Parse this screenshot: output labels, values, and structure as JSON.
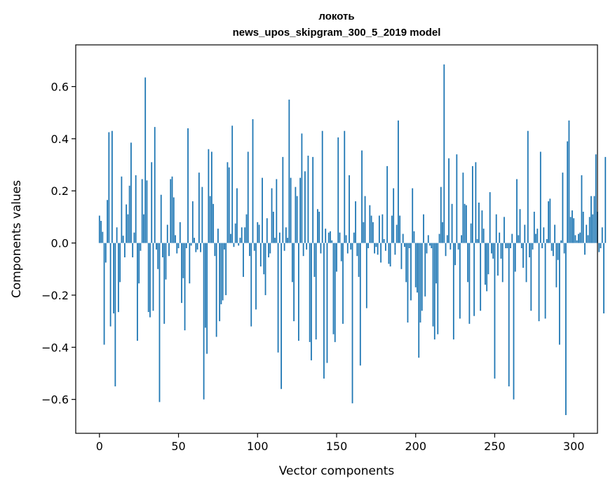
{
  "chart_data": {
    "type": "bar",
    "title": "локоть",
    "subtitle": "news_upos_skipgram_300_5_2019 model",
    "xlabel": "Vector components",
    "ylabel": "Components values",
    "xlim": [
      -15,
      315
    ],
    "ylim": [
      -0.73,
      0.76
    ],
    "xticks": [
      0,
      50,
      100,
      150,
      200,
      250,
      300
    ],
    "yticks": [
      -0.6,
      -0.4,
      -0.2,
      0.0,
      0.2,
      0.4,
      0.6
    ],
    "yticklabels": [
      "−0.6",
      "−0.4",
      "−0.2",
      "0.0",
      "0.2",
      "0.4",
      "0.6"
    ],
    "bar_color": "#1f77b4",
    "grid": false,
    "legend": "none",
    "values": [
      0.105,
      0.085,
      0.043,
      -0.39,
      -0.075,
      0.165,
      0.425,
      -0.32,
      0.43,
      -0.27,
      -0.55,
      0.06,
      -0.265,
      -0.15,
      0.255,
      0.028,
      -0.055,
      0.148,
      0.11,
      0.22,
      0.385,
      -0.055,
      0.04,
      0.26,
      -0.375,
      -0.155,
      -0.03,
      0.245,
      0.11,
      0.635,
      0.24,
      -0.265,
      -0.285,
      0.31,
      -0.26,
      0.445,
      -0.025,
      -0.1,
      -0.61,
      0.185,
      -0.055,
      -0.31,
      -0.14,
      0.07,
      -0.05,
      0.245,
      0.255,
      0.175,
      0.03,
      -0.04,
      -0.02,
      0.08,
      -0.23,
      -0.135,
      -0.335,
      -0.02,
      0.44,
      -0.155,
      -0.01,
      0.16,
      0.02,
      -0.035,
      -0.025,
      0.27,
      -0.035,
      0.215,
      -0.6,
      -0.325,
      -0.425,
      0.36,
      0.18,
      0.35,
      0.15,
      -0.05,
      -0.36,
      0.055,
      -0.3,
      -0.235,
      -0.22,
      -0.025,
      -0.2,
      0.31,
      0.29,
      0.035,
      0.45,
      -0.015,
      0.075,
      0.21,
      -0.01,
      0.02,
      0.06,
      -0.13,
      0.06,
      0.11,
      0.35,
      -0.05,
      -0.32,
      0.475,
      -0.03,
      -0.255,
      0.08,
      0.07,
      -0.09,
      0.25,
      -0.12,
      -0.2,
      0.095,
      -0.055,
      -0.04,
      0.21,
      0.12,
      0.02,
      0.245,
      -0.42,
      0.04,
      -0.56,
      0.33,
      -0.03,
      0.06,
      0.02,
      0.55,
      0.25,
      -0.15,
      -0.3,
      0.215,
      0.18,
      -0.375,
      0.25,
      0.42,
      -0.05,
      0.275,
      -0.025,
      0.335,
      -0.38,
      -0.45,
      0.33,
      -0.13,
      -0.37,
      0.13,
      0.12,
      -0.04,
      0.43,
      -0.52,
      0.055,
      -0.46,
      0.04,
      0.045,
      0.01,
      -0.35,
      -0.38,
      -0.11,
      0.405,
      0.04,
      -0.07,
      -0.31,
      0.43,
      0.03,
      -0.04,
      0.26,
      -0.025,
      -0.615,
      0.04,
      0.16,
      -0.05,
      -0.13,
      -0.47,
      0.355,
      0.08,
      0.18,
      -0.25,
      -0.02,
      0.145,
      0.105,
      0.08,
      -0.04,
      -0.015,
      -0.045,
      0.105,
      -0.075,
      0.11,
      0.015,
      -0.03,
      0.295,
      -0.08,
      -0.09,
      0.105,
      0.21,
      -0.045,
      0.07,
      0.47,
      0.105,
      -0.1,
      0.035,
      -0.015,
      -0.15,
      -0.305,
      -0.02,
      -0.22,
      0.21,
      0.045,
      -0.17,
      -0.19,
      -0.44,
      -0.305,
      -0.26,
      0.11,
      -0.205,
      -0.04,
      0.03,
      -0.01,
      -0.02,
      -0.32,
      -0.37,
      -0.155,
      -0.35,
      0.035,
      0.215,
      0.08,
      0.685,
      -0.05,
      0.03,
      0.325,
      -0.025,
      0.15,
      -0.37,
      -0.085,
      0.34,
      -0.025,
      -0.29,
      0.03,
      0.27,
      0.15,
      0.145,
      -0.15,
      -0.31,
      0.075,
      0.295,
      -0.28,
      0.31,
      0.015,
      0.155,
      -0.26,
      0.125,
      0.055,
      -0.16,
      -0.185,
      -0.12,
      0.195,
      -0.04,
      -0.06,
      -0.52,
      0.11,
      -0.125,
      0.04,
      -0.06,
      -0.15,
      0.1,
      -0.02,
      -0.02,
      -0.55,
      -0.02,
      0.035,
      -0.6,
      -0.11,
      0.245,
      0.03,
      0.13,
      -0.02,
      -0.095,
      0.07,
      -0.15,
      0.43,
      -0.055,
      -0.26,
      -0.025,
      0.12,
      0.035,
      0.055,
      -0.3,
      0.35,
      -0.02,
      0.06,
      -0.29,
      0.015,
      0.16,
      0.17,
      -0.03,
      -0.05,
      0.07,
      -0.17,
      -0.065,
      -0.39,
      0.01,
      0.27,
      -0.04,
      -0.66,
      0.39,
      0.47,
      0.1,
      0.125,
      0.095,
      0.03,
      0.01,
      0.035,
      0.04,
      0.26,
      0.12,
      -0.045,
      0.07,
      0.03,
      0.1,
      0.18,
      0.11,
      0.18,
      0.34,
      0.12,
      -0.035,
      -0.02,
      0.06,
      -0.27,
      0.33
    ]
  }
}
